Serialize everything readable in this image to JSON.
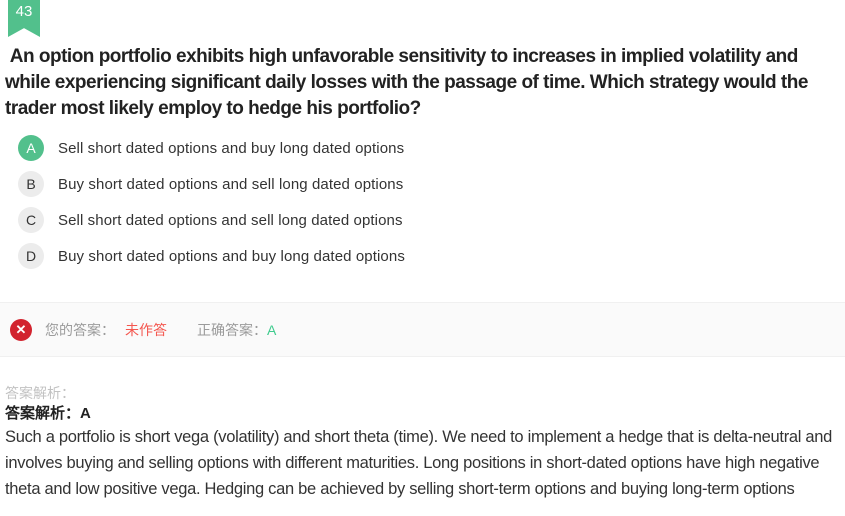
{
  "badge": {
    "number": "43"
  },
  "question": {
    "text": " An option portfolio exhibits high unfavorable sensitivity to increases in implied volatility and while experiencing significant daily losses with the passage of time. Which strategy would the trader most likely employ to hedge his portfolio?"
  },
  "options": [
    {
      "letter": "A",
      "text": "Sell short dated options and buy long dated options",
      "state": "correct"
    },
    {
      "letter": "B",
      "text": "Buy short dated options and sell long dated options",
      "state": "default"
    },
    {
      "letter": "C",
      "text": "Sell short dated options and sell long dated options",
      "state": "default"
    },
    {
      "letter": "D",
      "text": "Buy short dated options and buy long dated options",
      "state": "default"
    }
  ],
  "result": {
    "status_icon": "x-circle-icon",
    "status_glyph": "✕",
    "your_answer_label": "您的答案：",
    "your_answer_value": "未作答",
    "correct_answer_label": "正确答案：",
    "correct_answer_value": "A"
  },
  "analysis": {
    "section_label": "答案解析：",
    "answer_line": "答案解析：A",
    "explanation": "Such a portfolio is short vega (volatility) and short theta (time). We need to implement a hedge that is delta-neutral and involves buying and selling options with different maturities. Long positions in short-dated options have high negative theta and low positive vega. Hedging can be achieved by selling short-term options and buying long-term options"
  },
  "colors": {
    "accent_green": "#52c08c",
    "answer_green": "#3fcb8e",
    "status_red": "#d2232e",
    "unanswered_red": "#f4564e",
    "muted_gray": "#9b9b9b",
    "faint_gray": "#c2c2c2"
  }
}
